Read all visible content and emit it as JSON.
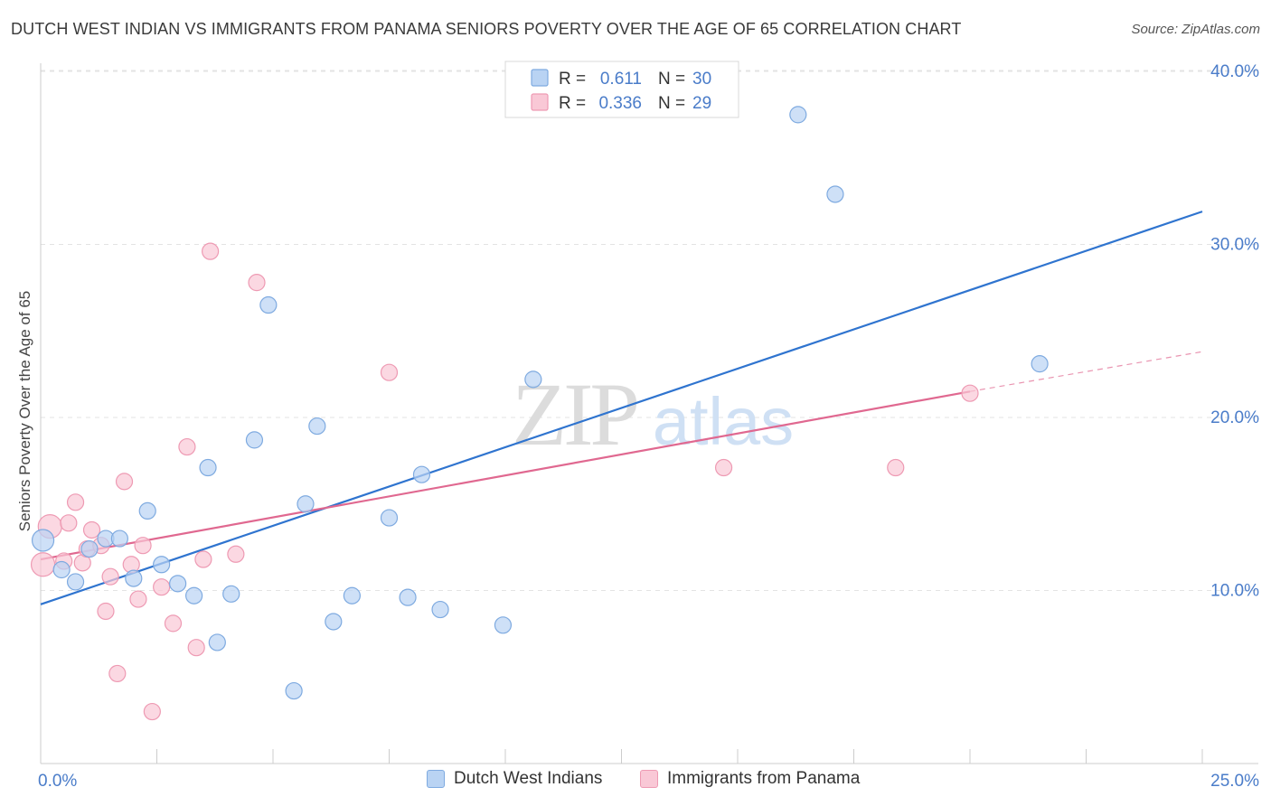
{
  "header": {
    "title": "DUTCH WEST INDIAN VS IMMIGRANTS FROM PANAMA SENIORS POVERTY OVER THE AGE OF 65 CORRELATION CHART",
    "source": "Source: ZipAtlas.com"
  },
  "watermark": {
    "zip": "ZIP",
    "atlas": "atlas"
  },
  "colors": {
    "blue_fill": "#b9d3f3",
    "blue_stroke": "#7eaae0",
    "blue_line": "#2f74cf",
    "pink_fill": "#f9c8d6",
    "pink_stroke": "#ee9ab3",
    "pink_line": "#e06890",
    "tick_text": "#4a7cc9",
    "grid": "#e3e3e3"
  },
  "chart_data": {
    "type": "scatter",
    "title": "DUTCH WEST INDIAN VS IMMIGRANTS FROM PANAMA SENIORS POVERTY OVER THE AGE OF 65 CORRELATION CHART",
    "xlabel": "",
    "ylabel": "Seniors Poverty Over the Age of 65",
    "xlim": [
      0,
      25
    ],
    "ylim": [
      0,
      42
    ],
    "x_tick_labels": [
      "0.0%",
      "25.0%"
    ],
    "y_ticks": [
      10,
      20,
      30,
      40
    ],
    "y_tick_labels": [
      "10.0%",
      "20.0%",
      "30.0%",
      "40.0%"
    ],
    "grid": true,
    "legend_position": "top-center",
    "legend": [
      {
        "r_label": "R = ",
        "r_value": "0.611",
        "n_label": "N = ",
        "n_value": "30"
      },
      {
        "r_label": "R = ",
        "r_value": "0.336",
        "n_label": "N = ",
        "n_value": "29"
      }
    ],
    "series": [
      {
        "name": "Dutch West Indians",
        "color": "blue",
        "points": [
          [
            0.05,
            12.9
          ],
          [
            0.45,
            11.2
          ],
          [
            0.75,
            10.5
          ],
          [
            1.05,
            12.4
          ],
          [
            1.4,
            13.0
          ],
          [
            1.7,
            13.0
          ],
          [
            2.0,
            10.7
          ],
          [
            2.3,
            14.6
          ],
          [
            2.6,
            11.5
          ],
          [
            2.95,
            10.4
          ],
          [
            3.3,
            9.7
          ],
          [
            3.6,
            17.1
          ],
          [
            3.8,
            7.0
          ],
          [
            4.1,
            9.8
          ],
          [
            4.6,
            18.7
          ],
          [
            4.9,
            26.5
          ],
          [
            5.45,
            4.2
          ],
          [
            5.7,
            15.0
          ],
          [
            5.95,
            19.5
          ],
          [
            6.3,
            8.2
          ],
          [
            6.7,
            9.7
          ],
          [
            7.5,
            14.2
          ],
          [
            7.9,
            9.6
          ],
          [
            8.2,
            16.7
          ],
          [
            8.6,
            8.9
          ],
          [
            9.95,
            8.0
          ],
          [
            10.6,
            22.2
          ],
          [
            16.3,
            37.5
          ],
          [
            17.1,
            32.9
          ],
          [
            21.5,
            23.1
          ]
        ],
        "trend": {
          "x0": 0,
          "y0": 9.2,
          "x1": 25,
          "y1": 31.9
        }
      },
      {
        "name": "Immigrants from Panama",
        "color": "pink",
        "points": [
          [
            0.05,
            11.5
          ],
          [
            0.2,
            13.7
          ],
          [
            0.5,
            11.7
          ],
          [
            0.6,
            13.9
          ],
          [
            0.75,
            15.1
          ],
          [
            0.9,
            11.6
          ],
          [
            1.0,
            12.4
          ],
          [
            1.1,
            13.5
          ],
          [
            1.3,
            12.6
          ],
          [
            1.4,
            8.8
          ],
          [
            1.5,
            10.8
          ],
          [
            1.65,
            5.2
          ],
          [
            1.8,
            16.3
          ],
          [
            1.95,
            11.5
          ],
          [
            2.1,
            9.5
          ],
          [
            2.2,
            12.6
          ],
          [
            2.4,
            3.0
          ],
          [
            2.6,
            10.2
          ],
          [
            2.85,
            8.1
          ],
          [
            3.15,
            18.3
          ],
          [
            3.35,
            6.7
          ],
          [
            3.5,
            11.8
          ],
          [
            3.65,
            29.6
          ],
          [
            4.2,
            12.1
          ],
          [
            4.65,
            27.8
          ],
          [
            7.5,
            22.6
          ],
          [
            14.7,
            17.1
          ],
          [
            18.4,
            17.1
          ],
          [
            20.0,
            21.4
          ]
        ],
        "trend": {
          "x0": 0,
          "y0": 11.8,
          "x1": 20,
          "y1": 21.5
        },
        "trend_dashed": {
          "x0": 20,
          "y0": 21.5,
          "x1": 25,
          "y1": 23.8
        }
      }
    ]
  }
}
